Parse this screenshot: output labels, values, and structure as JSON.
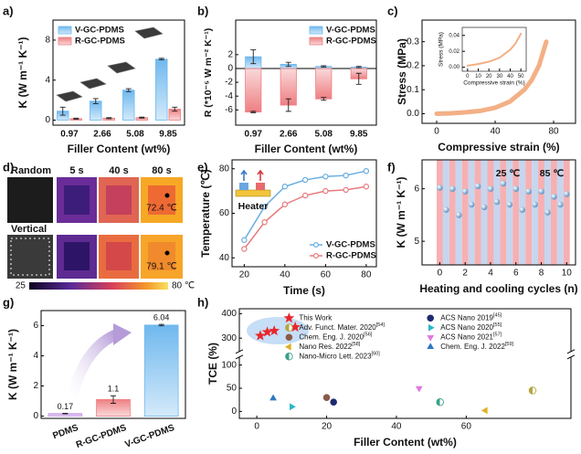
{
  "panel_d": {
    "label": "d)",
    "rows": [
      "Random",
      "Vertical"
    ],
    "times": [
      "5 s",
      "40 s",
      "80 s"
    ],
    "readings": [
      "72.4 ℃",
      "79.1 ℃"
    ],
    "colorbar": [
      "25",
      "80 ℃"
    ]
  },
  "chart_data": [
    {
      "label": "a)",
      "type": "bar",
      "xlabel": "Filler Content (wt%)",
      "ylabel": "K (W m⁻¹ K⁻¹)",
      "categories": [
        "0.97",
        "2.66",
        "5.08",
        "9.85"
      ],
      "ylim": [
        -0.5,
        10
      ],
      "yticks": [
        0,
        4,
        8
      ],
      "legend": "upper left",
      "series": [
        {
          "name": "V-GC-PDMS",
          "color": "#6fb8ee",
          "values": [
            0.9,
            1.9,
            3.0,
            6.1
          ],
          "errors": [
            0.4,
            0.25,
            0.15,
            0.08
          ]
        },
        {
          "name": "R-GC-PDMS",
          "color": "#ee7f82",
          "values": [
            0.15,
            0.2,
            0.25,
            1.1
          ],
          "errors": [
            0.05,
            0.05,
            0.05,
            0.2
          ]
        }
      ]
    },
    {
      "label": "b)",
      "type": "bar",
      "bar_mode": "overlay",
      "zero_line": true,
      "xlabel": "Filler Content (wt%)",
      "ylabel": "R (*10⁻⁵ W m⁻² K⁻¹)",
      "categories": [
        "0.97",
        "2.66",
        "5.08",
        "9.85"
      ],
      "ylim": [
        -8.2,
        7
      ],
      "yticks": [
        -6,
        -4,
        -2,
        0,
        2
      ],
      "legend": "upper right",
      "series": [
        {
          "name": "V-GC-PDMS",
          "color": "#6fb8ee",
          "values": [
            1.7,
            0.6,
            0.3,
            0.2
          ],
          "errors": [
            1.0,
            0.3,
            0.1,
            0.1
          ]
        },
        {
          "name": "R-GC-PDMS",
          "color": "#ee7f82",
          "values": [
            -6.3,
            -5.3,
            -4.4,
            -1.5
          ],
          "errors": [
            0.1,
            0.9,
            0.2,
            0.8
          ]
        }
      ]
    },
    {
      "label": "c)",
      "type": "line",
      "xlabel": "Compressive strain (%)",
      "ylabel": "Stress (MPa)",
      "x": [
        0,
        10,
        20,
        30,
        40,
        50,
        60,
        65,
        70,
        75
      ],
      "xlim": [
        -10,
        95
      ],
      "xticks": [
        0,
        40,
        80
      ],
      "ylim": [
        -0.04,
        0.39
      ],
      "yticks": [
        {
          "value": 0,
          "label": "0.0"
        },
        0.1,
        0.2,
        0.3
      ],
      "line_width": 5,
      "series": [
        {
          "color": "#f3b086",
          "values": [
            0,
            0.002,
            0.006,
            0.012,
            0.025,
            0.05,
            0.1,
            0.14,
            0.2,
            0.3
          ]
        }
      ]
    },
    {
      "type": "line",
      "xlabel": "Compressive strain (%)",
      "ylabel": "Stress (MPa)",
      "x": [
        0,
        10,
        20,
        30,
        40,
        45,
        50
      ],
      "xlim": [
        -5,
        55
      ],
      "xticks": [
        0,
        10,
        20,
        30,
        40,
        50
      ],
      "ylim": [
        -0.005,
        0.05
      ],
      "yticks": [
        {
          "value": 0,
          "label": "0.00"
        },
        0.02,
        0.04
      ],
      "line_width": 2,
      "series": [
        {
          "color": "#f3b086",
          "values": [
            0.002,
            0.004,
            0.007,
            0.012,
            0.022,
            0.03,
            0.042
          ]
        }
      ]
    },
    {
      "label": "e)",
      "type": "line",
      "xlabel": "Time (s)",
      "ylabel": "Temperature (℃)",
      "x": [
        20,
        30,
        40,
        50,
        60,
        70,
        80
      ],
      "xlim": [
        14,
        85
      ],
      "xticks": [
        20,
        40,
        60,
        80
      ],
      "ylim": [
        36,
        84
      ],
      "yticks": [
        40,
        60,
        80
      ],
      "markers": true,
      "legend": "lower right",
      "annotations": [
        {
          "text": "Heater"
        }
      ],
      "series": [
        {
          "name": "V-GC-PDMS",
          "color": "#6aaee0",
          "values": [
            48,
            63,
            72,
            75,
            76.5,
            77,
            79
          ]
        },
        {
          "name": "R-GC-PDMS",
          "color": "#e87b7d",
          "values": [
            44,
            56,
            64,
            68,
            70,
            70.5,
            72
          ]
        }
      ]
    },
    {
      "label": "f)",
      "type": "scatter",
      "xlabel": "Heating and cooling cycles (n)",
      "ylabel": "K (W m⁻¹ K⁻¹)",
      "x": [
        0,
        0.5,
        1,
        1.5,
        2,
        2.5,
        3,
        3.5,
        4,
        4.5,
        5,
        5.5,
        6,
        6.5,
        7,
        7.5,
        8,
        8.5,
        9,
        9.5,
        10
      ],
      "xlim": [
        -1.4,
        10.7
      ],
      "xticks": [
        0,
        2,
        4,
        6,
        8,
        10
      ],
      "ylim": [
        4.55,
        6.55
      ],
      "yticks": [
        5,
        6
      ],
      "bands": [
        "#f6b0b2",
        "#c6d6ef"
      ],
      "annotations": [
        {
          "text": "25 ℃",
          "color": "#e0393e"
        },
        {
          "text": "85 ℃",
          "color": "#3a74c4"
        }
      ],
      "series": [
        {
          "color": "#3f82bb",
          "marker": "sphere",
          "values": [
            6.02,
            5.6,
            6.0,
            5.5,
            5.95,
            5.7,
            6.05,
            5.65,
            6.0,
            5.75,
            6.1,
            5.7,
            6.0,
            5.6,
            5.95,
            5.7,
            5.95,
            5.55,
            5.85,
            5.7,
            5.9
          ]
        }
      ]
    },
    {
      "label": "g)",
      "type": "bar",
      "ylabel": "K (W m⁻¹ K⁻¹)",
      "categories": [
        "PDMS",
        "R-GC-PDMS",
        "V-GC-PDMS"
      ],
      "values": [
        0.17,
        1.1,
        6.04
      ],
      "errors": [
        0.02,
        0.25,
        0.05
      ],
      "colors": [
        "#c99be8",
        "#ee7f82",
        "#6fb8ee"
      ],
      "ylim": [
        -0.15,
        7
      ],
      "yticks": [
        0,
        2,
        4,
        6
      ],
      "data_labels": true
    },
    {
      "label": "h)",
      "type": "scatter",
      "xlabel": "Filler Content (wt%)",
      "ylabel": "TCE (%)",
      "xlim": [
        -5,
        90
      ],
      "xticks": [
        0,
        20,
        40,
        60
      ],
      "ylim": [
        -15,
        420
      ],
      "y_break": [
        115,
        250
      ],
      "yticks": [
        0,
        50,
        100,
        300,
        400
      ],
      "legend": "upper right",
      "legend_columns": 2,
      "series": [
        {
          "name": "This Work",
          "color": "#e8262c",
          "marker": "star",
          "x": [
            1,
            3,
            5,
            11
          ],
          "values": [
            310,
            325,
            330,
            345
          ]
        },
        {
          "name": "Adv. Funct. Mater. 2020[54]",
          "color": "#b5a642",
          "marker": "half-circle",
          "x": [
            79
          ],
          "values": [
            45
          ]
        },
        {
          "name": "Chem. Eng. J. 2020[56]",
          "color": "#8a5a4a",
          "marker": "circle",
          "x": [
            20
          ],
          "values": [
            30
          ]
        },
        {
          "name": "Nano Res. 2022[58]",
          "color": "#e0b020",
          "marker": "triangle-left",
          "x": [
            65.5
          ],
          "values": [
            2
          ]
        },
        {
          "name": "Nano-Micro Lett. 2023[60]",
          "color": "#3aa088",
          "marker": "half-circle",
          "x": [
            52.5
          ],
          "values": [
            20
          ]
        },
        {
          "name": "ACS Nano 2019[45]",
          "color": "#1d2a6e",
          "marker": "circle",
          "x": [
            22
          ],
          "values": [
            20
          ]
        },
        {
          "name": "ACS Nano 2020[55]",
          "color": "#2ab8c8",
          "marker": "triangle-right",
          "x": [
            10
          ],
          "values": [
            10
          ]
        },
        {
          "name": "ACS Nano 2021[57]",
          "color": "#e07adf",
          "marker": "triangle-down",
          "x": [
            46.5
          ],
          "values": [
            50
          ]
        },
        {
          "name": "Chem. Eng. J. 2022[59]",
          "color": "#2f78c0",
          "marker": "triangle-up",
          "x": [
            4.7
          ],
          "values": [
            28
          ]
        }
      ]
    }
  ]
}
